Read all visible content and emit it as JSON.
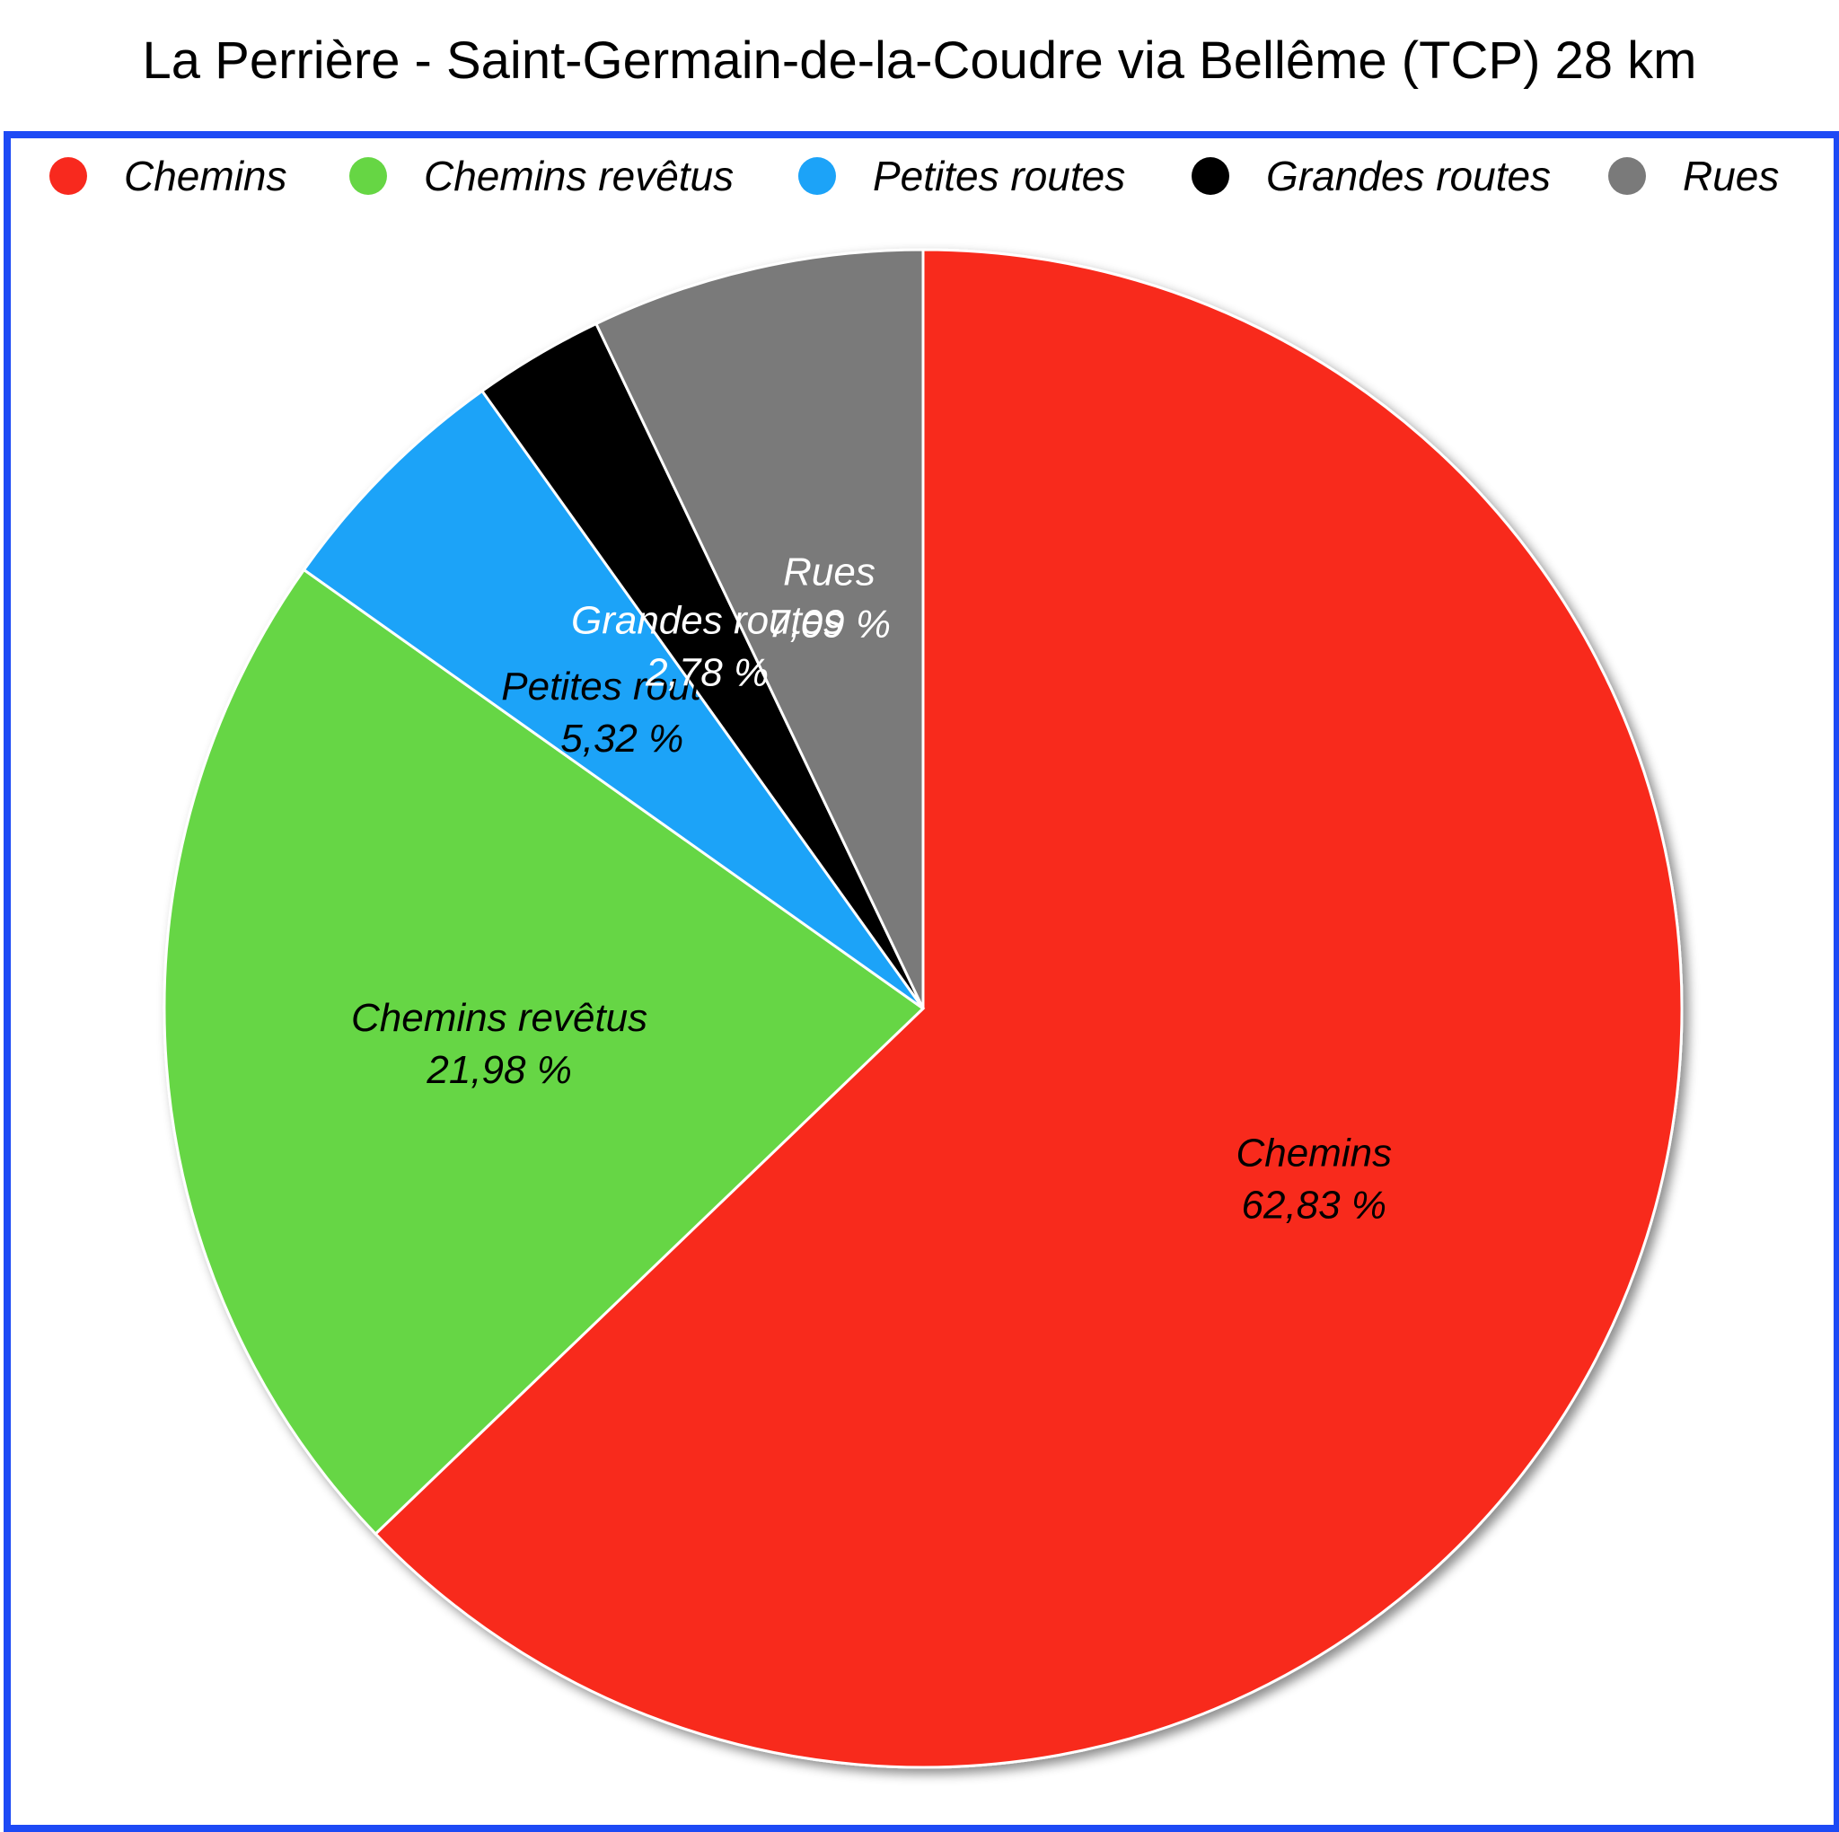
{
  "chart_data": {
    "type": "pie",
    "title": "La Perrière - Saint-Germain-de-la-Coudre via Bellême (TCP) 28 km",
    "legend_position": "top",
    "slices": [
      {
        "name": "Chemins",
        "value": 62.83,
        "label": "62,83 %",
        "color": "#f8291e",
        "text_color": "#000000"
      },
      {
        "name": "Chemins revêtus",
        "value": 21.98,
        "label": "21,98 %",
        "color": "#66d644",
        "text_color": "#000000"
      },
      {
        "name": "Petites routes",
        "value": 5.32,
        "label": "5,32 %",
        "color": "#1ca3f8",
        "text_color": "#000000"
      },
      {
        "name": "Grandes routes",
        "value": 2.78,
        "label": "2,78 %",
        "color": "#000000",
        "text_color": "#ffffff"
      },
      {
        "name": "Rues",
        "value": 7.09,
        "label": "7,09 %",
        "color": "#7a7a7a",
        "text_color": "#ffffff"
      }
    ]
  }
}
